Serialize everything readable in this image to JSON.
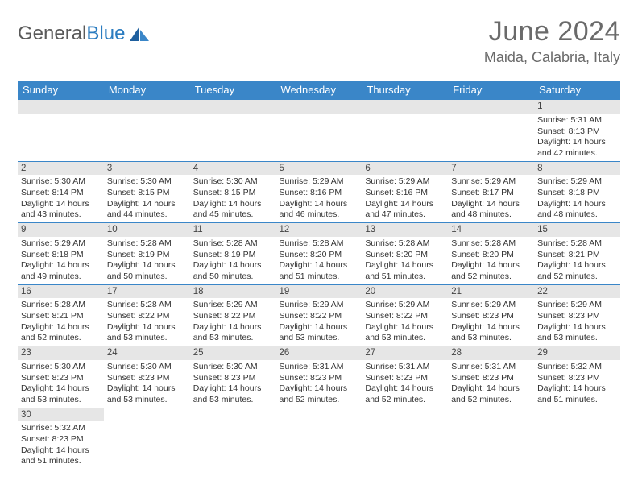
{
  "brand": {
    "word1": "General",
    "word2": "Blue"
  },
  "title": "June 2024",
  "location": "Maida, Calabria, Italy",
  "colors": {
    "header_bg": "#3a86c8",
    "header_text": "#ffffff",
    "daynum_bg": "#e6e6e6",
    "accent_border": "#3a86c8",
    "title_color": "#6a6a6a",
    "body_text": "#333333",
    "page_bg": "#ffffff"
  },
  "day_headers": [
    "Sunday",
    "Monday",
    "Tuesday",
    "Wednesday",
    "Thursday",
    "Friday",
    "Saturday"
  ],
  "weeks": [
    [
      {
        "empty": true
      },
      {
        "empty": true
      },
      {
        "empty": true
      },
      {
        "empty": true
      },
      {
        "empty": true
      },
      {
        "empty": true
      },
      {
        "n": "1",
        "sunrise": "Sunrise: 5:31 AM",
        "sunset": "Sunset: 8:13 PM",
        "dl1": "Daylight: 14 hours",
        "dl2": "and 42 minutes."
      }
    ],
    [
      {
        "n": "2",
        "sunrise": "Sunrise: 5:30 AM",
        "sunset": "Sunset: 8:14 PM",
        "dl1": "Daylight: 14 hours",
        "dl2": "and 43 minutes."
      },
      {
        "n": "3",
        "sunrise": "Sunrise: 5:30 AM",
        "sunset": "Sunset: 8:15 PM",
        "dl1": "Daylight: 14 hours",
        "dl2": "and 44 minutes."
      },
      {
        "n": "4",
        "sunrise": "Sunrise: 5:30 AM",
        "sunset": "Sunset: 8:15 PM",
        "dl1": "Daylight: 14 hours",
        "dl2": "and 45 minutes."
      },
      {
        "n": "5",
        "sunrise": "Sunrise: 5:29 AM",
        "sunset": "Sunset: 8:16 PM",
        "dl1": "Daylight: 14 hours",
        "dl2": "and 46 minutes."
      },
      {
        "n": "6",
        "sunrise": "Sunrise: 5:29 AM",
        "sunset": "Sunset: 8:16 PM",
        "dl1": "Daylight: 14 hours",
        "dl2": "and 47 minutes."
      },
      {
        "n": "7",
        "sunrise": "Sunrise: 5:29 AM",
        "sunset": "Sunset: 8:17 PM",
        "dl1": "Daylight: 14 hours",
        "dl2": "and 48 minutes."
      },
      {
        "n": "8",
        "sunrise": "Sunrise: 5:29 AM",
        "sunset": "Sunset: 8:18 PM",
        "dl1": "Daylight: 14 hours",
        "dl2": "and 48 minutes."
      }
    ],
    [
      {
        "n": "9",
        "sunrise": "Sunrise: 5:29 AM",
        "sunset": "Sunset: 8:18 PM",
        "dl1": "Daylight: 14 hours",
        "dl2": "and 49 minutes."
      },
      {
        "n": "10",
        "sunrise": "Sunrise: 5:28 AM",
        "sunset": "Sunset: 8:19 PM",
        "dl1": "Daylight: 14 hours",
        "dl2": "and 50 minutes."
      },
      {
        "n": "11",
        "sunrise": "Sunrise: 5:28 AM",
        "sunset": "Sunset: 8:19 PM",
        "dl1": "Daylight: 14 hours",
        "dl2": "and 50 minutes."
      },
      {
        "n": "12",
        "sunrise": "Sunrise: 5:28 AM",
        "sunset": "Sunset: 8:20 PM",
        "dl1": "Daylight: 14 hours",
        "dl2": "and 51 minutes."
      },
      {
        "n": "13",
        "sunrise": "Sunrise: 5:28 AM",
        "sunset": "Sunset: 8:20 PM",
        "dl1": "Daylight: 14 hours",
        "dl2": "and 51 minutes."
      },
      {
        "n": "14",
        "sunrise": "Sunrise: 5:28 AM",
        "sunset": "Sunset: 8:20 PM",
        "dl1": "Daylight: 14 hours",
        "dl2": "and 52 minutes."
      },
      {
        "n": "15",
        "sunrise": "Sunrise: 5:28 AM",
        "sunset": "Sunset: 8:21 PM",
        "dl1": "Daylight: 14 hours",
        "dl2": "and 52 minutes."
      }
    ],
    [
      {
        "n": "16",
        "sunrise": "Sunrise: 5:28 AM",
        "sunset": "Sunset: 8:21 PM",
        "dl1": "Daylight: 14 hours",
        "dl2": "and 52 minutes."
      },
      {
        "n": "17",
        "sunrise": "Sunrise: 5:28 AM",
        "sunset": "Sunset: 8:22 PM",
        "dl1": "Daylight: 14 hours",
        "dl2": "and 53 minutes."
      },
      {
        "n": "18",
        "sunrise": "Sunrise: 5:29 AM",
        "sunset": "Sunset: 8:22 PM",
        "dl1": "Daylight: 14 hours",
        "dl2": "and 53 minutes."
      },
      {
        "n": "19",
        "sunrise": "Sunrise: 5:29 AM",
        "sunset": "Sunset: 8:22 PM",
        "dl1": "Daylight: 14 hours",
        "dl2": "and 53 minutes."
      },
      {
        "n": "20",
        "sunrise": "Sunrise: 5:29 AM",
        "sunset": "Sunset: 8:22 PM",
        "dl1": "Daylight: 14 hours",
        "dl2": "and 53 minutes."
      },
      {
        "n": "21",
        "sunrise": "Sunrise: 5:29 AM",
        "sunset": "Sunset: 8:23 PM",
        "dl1": "Daylight: 14 hours",
        "dl2": "and 53 minutes."
      },
      {
        "n": "22",
        "sunrise": "Sunrise: 5:29 AM",
        "sunset": "Sunset: 8:23 PM",
        "dl1": "Daylight: 14 hours",
        "dl2": "and 53 minutes."
      }
    ],
    [
      {
        "n": "23",
        "sunrise": "Sunrise: 5:30 AM",
        "sunset": "Sunset: 8:23 PM",
        "dl1": "Daylight: 14 hours",
        "dl2": "and 53 minutes."
      },
      {
        "n": "24",
        "sunrise": "Sunrise: 5:30 AM",
        "sunset": "Sunset: 8:23 PM",
        "dl1": "Daylight: 14 hours",
        "dl2": "and 53 minutes."
      },
      {
        "n": "25",
        "sunrise": "Sunrise: 5:30 AM",
        "sunset": "Sunset: 8:23 PM",
        "dl1": "Daylight: 14 hours",
        "dl2": "and 53 minutes."
      },
      {
        "n": "26",
        "sunrise": "Sunrise: 5:31 AM",
        "sunset": "Sunset: 8:23 PM",
        "dl1": "Daylight: 14 hours",
        "dl2": "and 52 minutes."
      },
      {
        "n": "27",
        "sunrise": "Sunrise: 5:31 AM",
        "sunset": "Sunset: 8:23 PM",
        "dl1": "Daylight: 14 hours",
        "dl2": "and 52 minutes."
      },
      {
        "n": "28",
        "sunrise": "Sunrise: 5:31 AM",
        "sunset": "Sunset: 8:23 PM",
        "dl1": "Daylight: 14 hours",
        "dl2": "and 52 minutes."
      },
      {
        "n": "29",
        "sunrise": "Sunrise: 5:32 AM",
        "sunset": "Sunset: 8:23 PM",
        "dl1": "Daylight: 14 hours",
        "dl2": "and 51 minutes."
      }
    ],
    [
      {
        "n": "30",
        "sunrise": "Sunrise: 5:32 AM",
        "sunset": "Sunset: 8:23 PM",
        "dl1": "Daylight: 14 hours",
        "dl2": "and 51 minutes."
      },
      {
        "empty": true
      },
      {
        "empty": true
      },
      {
        "empty": true
      },
      {
        "empty": true
      },
      {
        "empty": true
      },
      {
        "empty": true
      }
    ]
  ]
}
